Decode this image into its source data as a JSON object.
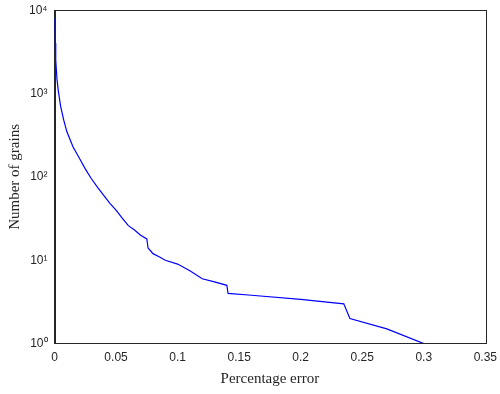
{
  "chart_data": {
    "type": "line",
    "x_label": "Percentage error",
    "y_label": "Number of grains",
    "color": "#0000ff",
    "log": "y",
    "grid": false,
    "xlim": [
      0,
      0.35
    ],
    "xticks": [
      0,
      0.05,
      0.1,
      0.15,
      0.2,
      0.25,
      0.3,
      0.35
    ],
    "ylim": [
      1,
      10000
    ],
    "yticks": [
      {
        "value": 1,
        "label": "10⁰"
      },
      {
        "value": 10,
        "label": "10¹"
      },
      {
        "value": 100,
        "label": "10²"
      },
      {
        "value": 1000,
        "label": "10³"
      },
      {
        "value": 10000,
        "label": "10⁴"
      }
    ],
    "x": [
      0,
      0.0005,
      0.001,
      0.002,
      0.003,
      0.005,
      0.0075,
      0.01,
      0.015,
      0.02,
      0.025,
      0.03,
      0.035,
      0.04,
      0.045,
      0.05,
      0.055,
      0.06,
      0.065,
      0.07,
      0.075,
      0.076,
      0.078,
      0.08,
      0.085,
      0.09,
      0.1,
      0.11,
      0.12,
      0.13,
      0.14,
      0.141,
      0.16,
      0.2,
      0.235,
      0.24,
      0.27,
      0.3
    ],
    "values": [
      8000,
      4000,
      2500,
      1500,
      1100,
      700,
      480,
      350,
      230,
      170,
      125,
      95,
      75,
      60,
      48,
      40,
      32,
      26,
      23,
      20,
      18,
      14,
      13,
      12,
      11,
      10,
      9,
      7.5,
      6,
      5.5,
      5,
      4,
      3.8,
      3.4,
      3,
      2,
      1.5,
      1
    ]
  }
}
